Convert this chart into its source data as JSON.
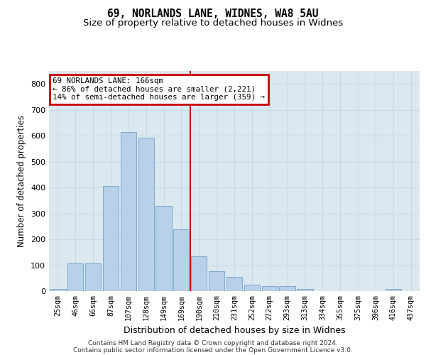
{
  "title1": "69, NORLANDS LANE, WIDNES, WA8 5AU",
  "title2": "Size of property relative to detached houses in Widnes",
  "xlabel": "Distribution of detached houses by size in Widnes",
  "ylabel": "Number of detached properties",
  "categories": [
    "25sqm",
    "46sqm",
    "66sqm",
    "87sqm",
    "107sqm",
    "128sqm",
    "149sqm",
    "169sqm",
    "190sqm",
    "210sqm",
    "231sqm",
    "252sqm",
    "272sqm",
    "293sqm",
    "313sqm",
    "334sqm",
    "355sqm",
    "375sqm",
    "396sqm",
    "416sqm",
    "437sqm"
  ],
  "values": [
    8,
    108,
    108,
    405,
    615,
    592,
    330,
    238,
    135,
    78,
    55,
    25,
    18,
    18,
    8,
    0,
    0,
    0,
    0,
    8,
    0
  ],
  "bar_color": "#b8d0e8",
  "bar_edge_color": "#7aaacf",
  "bar_edge_width": 0.7,
  "vline_color": "#cc0000",
  "vline_index": 7,
  "annotation_line1": "69 NORLANDS LANE: 166sqm",
  "annotation_line2": "← 86% of detached houses are smaller (2,221)",
  "annotation_line3": "14% of semi-detached houses are larger (359) →",
  "annotation_box_color": "#cc0000",
  "ylim": [
    0,
    850
  ],
  "yticks": [
    0,
    100,
    200,
    300,
    400,
    500,
    600,
    700,
    800
  ],
  "grid_color": "#c8d8e8",
  "bg_color": "#dce8f0",
  "footer1": "Contains HM Land Registry data © Crown copyright and database right 2024.",
  "footer2": "Contains public sector information licensed under the Open Government Licence v3.0.",
  "title1_fontsize": 10.5,
  "title2_fontsize": 9.5
}
